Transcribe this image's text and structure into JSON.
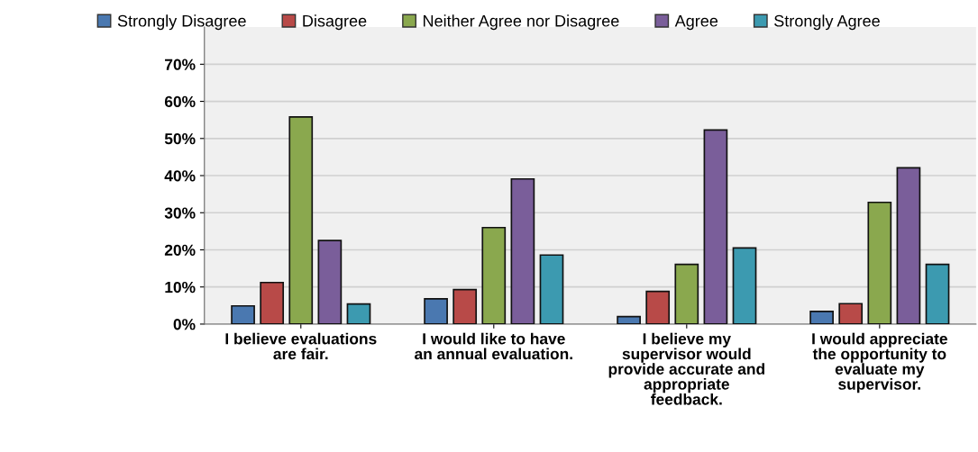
{
  "chart_data": {
    "type": "bar",
    "categories": [
      "I believe evaluations\nare fair.",
      "I would like to have\nan annual evaluation.",
      "I believe my\nsupervisor would\nprovide accurate and\nappropriate\nfeedback.",
      "I would appreciate\nthe opportunity to\nevaluate my\nsupervisor."
    ],
    "series": [
      {
        "name": "Strongly Disagree",
        "color": "#4a78b0",
        "values": [
          4.9,
          6.8,
          2.0,
          3.4
        ]
      },
      {
        "name": "Disagree",
        "color": "#b84a48",
        "values": [
          11.2,
          9.3,
          8.8,
          5.5
        ]
      },
      {
        "name": "Neither Agree nor Disagree",
        "color": "#8aa84e",
        "values": [
          55.8,
          26.0,
          16.1,
          32.8
        ]
      },
      {
        "name": "Agree",
        "color": "#7a5e9a",
        "values": [
          22.5,
          39.1,
          52.3,
          42.1
        ]
      },
      {
        "name": "Strongly Agree",
        "color": "#3c9ab0",
        "values": [
          5.4,
          18.6,
          20.5,
          16.1
        ]
      }
    ],
    "ylim": [
      0,
      80
    ],
    "yticks": [
      {
        "value": 0,
        "label": "0%"
      },
      {
        "value": 10,
        "label": "10%"
      },
      {
        "value": 20,
        "label": "20%"
      },
      {
        "value": 30,
        "label": "30%"
      },
      {
        "value": 40,
        "label": "40%"
      },
      {
        "value": 50,
        "label": "50%"
      },
      {
        "value": 60,
        "label": "60%"
      },
      {
        "value": 70,
        "label": "70%"
      }
    ],
    "grid": "y",
    "legend": "top"
  }
}
